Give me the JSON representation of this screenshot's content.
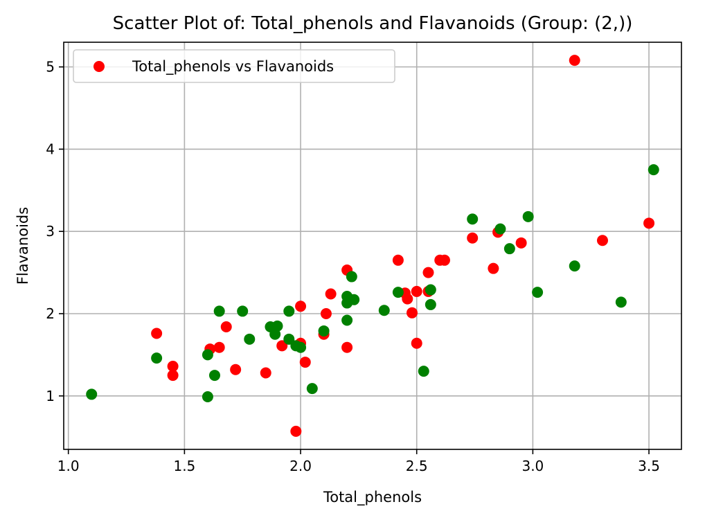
{
  "chart_data": {
    "type": "scatter",
    "title": "Scatter Plot of: Total_phenols and Flavanoids (Group: (2,))",
    "xlabel": "Total_phenols",
    "ylabel": "Flavanoids",
    "xlim": [
      0.98,
      3.64
    ],
    "ylim": [
      0.35,
      5.3
    ],
    "xticks": [
      1.0,
      1.5,
      2.0,
      2.5,
      3.0,
      3.5
    ],
    "xtick_labels": [
      "1.0",
      "1.5",
      "2.0",
      "2.5",
      "3.0",
      "3.5"
    ],
    "yticks": [
      1,
      2,
      3,
      4,
      5
    ],
    "ytick_labels": [
      "1",
      "2",
      "3",
      "4",
      "5"
    ],
    "grid": true,
    "legend": {
      "position": "top-left",
      "entries": [
        "Total_phenols vs Flavanoids"
      ]
    },
    "series": [
      {
        "name": "Total_phenols vs Flavanoids",
        "color": "#ff0000",
        "points": [
          [
            3.18,
            5.08
          ],
          [
            3.5,
            3.1
          ],
          [
            3.3,
            2.89
          ],
          [
            2.95,
            2.86
          ],
          [
            2.85,
            2.99
          ],
          [
            2.74,
            2.92
          ],
          [
            2.83,
            2.55
          ],
          [
            2.6,
            2.65
          ],
          [
            2.62,
            2.65
          ],
          [
            2.42,
            2.65
          ],
          [
            2.55,
            2.5
          ],
          [
            2.45,
            2.25
          ],
          [
            2.46,
            2.18
          ],
          [
            2.5,
            2.27
          ],
          [
            2.55,
            2.27
          ],
          [
            2.48,
            2.01
          ],
          [
            2.5,
            1.64
          ],
          [
            2.2,
            2.53
          ],
          [
            2.13,
            2.24
          ],
          [
            2.11,
            2.0
          ],
          [
            2.1,
            1.75
          ],
          [
            2.2,
            1.59
          ],
          [
            2.0,
            2.09
          ],
          [
            2.0,
            1.64
          ],
          [
            2.02,
            1.41
          ],
          [
            1.98,
            0.57
          ],
          [
            1.92,
            1.61
          ],
          [
            1.85,
            1.28
          ],
          [
            1.72,
            1.32
          ],
          [
            1.68,
            1.84
          ],
          [
            1.65,
            1.59
          ],
          [
            1.61,
            1.57
          ],
          [
            1.38,
            1.76
          ],
          [
            1.45,
            1.36
          ],
          [
            1.45,
            1.25
          ]
        ]
      },
      {
        "color": "#008000",
        "points": [
          [
            3.52,
            3.75
          ],
          [
            3.38,
            2.14
          ],
          [
            3.18,
            2.58
          ],
          [
            3.02,
            2.26
          ],
          [
            2.98,
            3.18
          ],
          [
            2.9,
            2.79
          ],
          [
            2.86,
            3.03
          ],
          [
            2.74,
            3.15
          ],
          [
            2.56,
            2.29
          ],
          [
            2.56,
            2.11
          ],
          [
            2.53,
            1.3
          ],
          [
            2.42,
            2.26
          ],
          [
            2.36,
            2.04
          ],
          [
            2.22,
            2.45
          ],
          [
            2.23,
            2.17
          ],
          [
            2.2,
            2.21
          ],
          [
            2.2,
            2.13
          ],
          [
            2.2,
            1.92
          ],
          [
            2.1,
            1.79
          ],
          [
            2.05,
            1.09
          ],
          [
            1.95,
            2.03
          ],
          [
            1.95,
            1.69
          ],
          [
            1.98,
            1.61
          ],
          [
            2.0,
            1.59
          ],
          [
            1.9,
            1.85
          ],
          [
            1.87,
            1.84
          ],
          [
            1.89,
            1.75
          ],
          [
            1.78,
            1.69
          ],
          [
            1.75,
            2.03
          ],
          [
            1.65,
            2.03
          ],
          [
            1.63,
            1.25
          ],
          [
            1.6,
            1.5
          ],
          [
            1.6,
            0.99
          ],
          [
            1.38,
            1.46
          ],
          [
            1.1,
            1.02
          ]
        ]
      }
    ]
  }
}
